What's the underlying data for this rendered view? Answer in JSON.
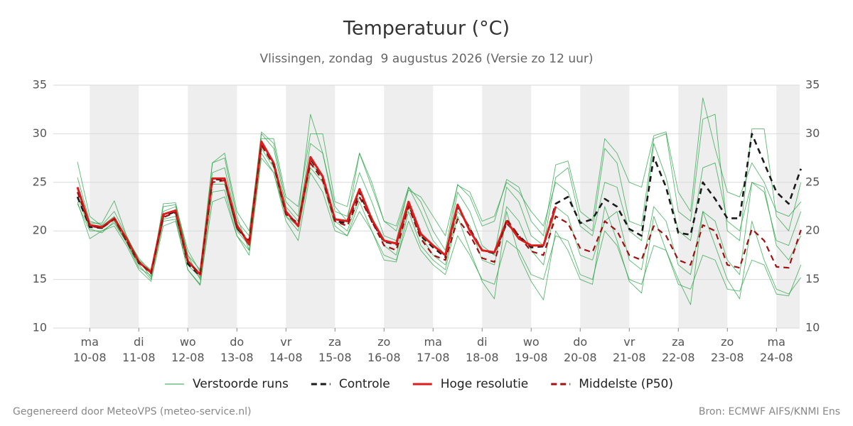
{
  "chart_data": {
    "type": "line",
    "title": "Temperatuur (°C)",
    "subtitle": "Vlissingen, zondag  9 augustus 2026 (Versie zo 12 uur)",
    "footer_left": "Gegenereerd door MeteoVPS (meteo-service.nl)",
    "footer_right": "Bron: ECMWF AIFS/KNMI Ens",
    "categories": [
      null,
      "ma 10-08",
      null,
      null,
      null,
      "di 11-08",
      null,
      null,
      null,
      "wo 12-08",
      null,
      null,
      null,
      "do 13-08",
      null,
      null,
      null,
      "vr 14-08",
      null,
      null,
      null,
      "za 15-08",
      null,
      null,
      null,
      "zo 16-08",
      null,
      null,
      null,
      "ma 17-08",
      null,
      null,
      null,
      "di 18-08",
      null,
      null,
      null,
      "wo 19-08",
      null,
      null,
      null,
      "do 20-08",
      null,
      null,
      null,
      "vr 21-08",
      null,
      null,
      null,
      "za 22-08",
      null,
      null,
      null,
      "zo 23-08",
      null,
      null,
      null,
      "ma 24-08",
      null,
      null
    ],
    "ylim": [
      10,
      35
    ],
    "yticks": [
      10,
      15,
      20,
      25,
      30,
      35
    ],
    "grid": true,
    "legend": "bottom",
    "series": [
      {
        "name": "Verstoorde runs",
        "color": "#23a040",
        "values": [
          25.5,
          21.0,
          20.6,
          22.0,
          19.5,
          17.0,
          15.2,
          22.8,
          22.9,
          17.5,
          15.0,
          27.0,
          27.5,
          21.5,
          18.0,
          30.0,
          28.5,
          22.5,
          21.0,
          29.0,
          28.0,
          22.0,
          21.5,
          26.0,
          23.0,
          19.5,
          19.0,
          24.5,
          22.0,
          19.0,
          17.5,
          24.0,
          22.0,
          18.5,
          17.5,
          24.5,
          23.0,
          19.5,
          18.5,
          25.5,
          26.5,
          21.0,
          20.0,
          28.5,
          27.0,
          21.0,
          20.5,
          29.5,
          30.0,
          22.0,
          21.0,
          31.5,
          32.0,
          20.0,
          19.0,
          30.5,
          30.5,
          21.5,
          20.0,
          25.0
        ]
      },
      {
        "name": "Verstoorde runs",
        "color": "#23a040",
        "values": [
          22.8,
          20.0,
          20.0,
          20.8,
          18.8,
          16.5,
          15.0,
          21.0,
          21.2,
          16.0,
          14.5,
          24.0,
          24.2,
          19.5,
          17.5,
          27.5,
          26.0,
          21.0,
          19.0,
          26.0,
          24.0,
          20.0,
          19.5,
          22.0,
          20.0,
          17.5,
          17.0,
          21.0,
          18.0,
          16.5,
          15.5,
          19.5,
          17.5,
          15.0,
          14.5,
          19.0,
          18.0,
          15.5,
          15.0,
          19.5,
          19.0,
          15.5,
          15.0,
          20.0,
          18.5,
          15.0,
          14.5,
          18.5,
          18.0,
          14.5,
          14.0,
          17.5,
          17.0,
          14.0,
          13.8,
          17.0,
          16.5,
          13.5,
          13.3,
          16.5
        ]
      },
      {
        "name": "Verstoorde runs",
        "color": "#23a040",
        "values": [
          27.1,
          21.5,
          20.5,
          21.5,
          19.3,
          17.2,
          15.8,
          22.5,
          22.7,
          18.0,
          15.8,
          26.0,
          26.5,
          21.0,
          19.5,
          30.2,
          29.0,
          23.0,
          21.5,
          32.0,
          28.0,
          22.5,
          21.0,
          28.0,
          25.0,
          21.0,
          20.5,
          24.5,
          23.0,
          20.0,
          18.0,
          24.8,
          23.5,
          20.5,
          21.0,
          25.3,
          24.5,
          21.0,
          19.5,
          26.8,
          27.2,
          22.0,
          21.0,
          29.5,
          28.0,
          25.0,
          24.5,
          29.8,
          30.2,
          24.0,
          22.0,
          33.7,
          28.5,
          24.0,
          23.5,
          27.0,
          25.0,
          22.0,
          21.5,
          23.0
        ]
      },
      {
        "name": "Verstoorde runs",
        "color": "#23a040",
        "values": [
          23.0,
          19.2,
          20.0,
          20.5,
          18.5,
          16.0,
          14.8,
          20.5,
          21.0,
          16.0,
          14.4,
          23.0,
          23.5,
          19.5,
          18.0,
          28.0,
          26.0,
          21.5,
          20.0,
          26.5,
          25.0,
          20.5,
          19.5,
          23.0,
          20.0,
          17.0,
          16.8,
          22.0,
          18.5,
          17.0,
          16.0,
          21.5,
          18.0,
          14.8,
          13.0,
          22.0,
          17.5,
          14.8,
          12.9,
          20.0,
          18.0,
          15.0,
          14.5,
          22.5,
          19.0,
          14.8,
          13.6,
          21.5,
          18.0,
          15.0,
          12.4,
          22.0,
          18.5,
          15.0,
          13.0,
          21.0,
          17.0,
          14.0,
          13.5,
          15.2
        ]
      },
      {
        "name": "Verstoorde runs",
        "color": "#23a040",
        "values": [
          24.0,
          20.8,
          20.8,
          23.1,
          19.5,
          17.0,
          16.0,
          22.0,
          22.5,
          17.5,
          16.0,
          27.0,
          28.0,
          22.0,
          20.0,
          29.5,
          29.5,
          23.5,
          22.5,
          30.0,
          30.0,
          23.0,
          22.5,
          28.0,
          24.5,
          21.0,
          20.0,
          24.2,
          23.5,
          21.5,
          19.5,
          24.7,
          24.0,
          21.0,
          21.5,
          25.0,
          24.0,
          22.0,
          20.5,
          25.0,
          24.0,
          20.5,
          19.5,
          25.0,
          24.5,
          20.0,
          19.0,
          29.0,
          25.5,
          20.0,
          19.0,
          26.5,
          27.0,
          21.0,
          20.0,
          25.0,
          24.0,
          19.0,
          18.5,
          22.0
        ]
      },
      {
        "name": "Verstoorde runs",
        "color": "#23a040",
        "values": [
          23.5,
          20.2,
          19.8,
          21.0,
          18.8,
          16.2,
          15.4,
          21.2,
          21.5,
          16.5,
          15.2,
          24.8,
          24.8,
          20.0,
          18.5,
          28.5,
          26.5,
          21.5,
          20.5,
          27.0,
          25.5,
          21.0,
          20.0,
          23.5,
          21.5,
          18.5,
          17.5,
          22.5,
          19.5,
          17.5,
          16.5,
          22.0,
          20.5,
          17.0,
          16.5,
          22.5,
          21.0,
          18.0,
          16.5,
          22.5,
          21.5,
          17.5,
          17.0,
          21.0,
          22.0,
          17.0,
          16.0,
          22.5,
          21.0,
          16.5,
          15.5,
          22.0,
          21.0,
          17.0,
          15.5,
          25.0,
          24.5,
          18.5,
          17.0,
          19.5
        ]
      },
      {
        "name": "Controle",
        "color": "#1a1a1a",
        "dash": true,
        "values": [
          23.5,
          20.4,
          20.3,
          21.3,
          19.0,
          16.7,
          15.8,
          21.5,
          22.0,
          16.6,
          15.4,
          25.3,
          25.3,
          20.3,
          18.8,
          29.0,
          26.8,
          21.8,
          20.6,
          27.4,
          25.5,
          21.0,
          20.8,
          24.0,
          21.0,
          18.9,
          18.6,
          22.8,
          19.5,
          18.3,
          17.3,
          22.5,
          20.2,
          18.0,
          17.7,
          20.8,
          19.5,
          18.3,
          18.4,
          22.8,
          23.5,
          20.8,
          21.2,
          23.3,
          22.5,
          20.2,
          19.5,
          27.6,
          24.5,
          19.8,
          19.6,
          25.0,
          23.3,
          21.3,
          21.3,
          30.0,
          27.0,
          24.0,
          22.8,
          26.4
        ]
      },
      {
        "name": "Hoge resolutie",
        "color": "#dd1c1c",
        "values": [
          24.5,
          20.6,
          20.4,
          21.3,
          19.2,
          16.8,
          15.7,
          21.7,
          22.1,
          16.9,
          15.5,
          25.4,
          25.4,
          20.6,
          18.6,
          29.2,
          27.0,
          22.0,
          20.5,
          27.6,
          25.6,
          21.2,
          21.0,
          24.3,
          21.2,
          19.0,
          18.7,
          23.0,
          19.7,
          18.5,
          17.5,
          22.7,
          20.0,
          18.0,
          17.8,
          21.0,
          19.2,
          18.5,
          18.5,
          22.5,
          null,
          null,
          null,
          null,
          null,
          null,
          null,
          null,
          null,
          null,
          null,
          null,
          null,
          null,
          null,
          null,
          null,
          null,
          null,
          null
        ]
      },
      {
        "name": "Middelste (P50)",
        "color": "#a01010",
        "dash": true,
        "values": [
          24.0,
          20.5,
          20.3,
          21.2,
          19.0,
          16.8,
          15.6,
          21.4,
          21.9,
          16.8,
          15.6,
          25.0,
          25.2,
          20.3,
          19.0,
          28.8,
          26.8,
          21.7,
          20.8,
          27.0,
          25.2,
          21.0,
          20.5,
          23.5,
          21.0,
          18.5,
          18.0,
          22.5,
          19.2,
          17.5,
          17.0,
          21.2,
          19.6,
          17.2,
          16.8,
          21.2,
          19.5,
          17.9,
          17.5,
          21.5,
          20.8,
          18.2,
          17.8,
          21.0,
          20.0,
          17.5,
          17.0,
          20.5,
          19.5,
          17.0,
          16.5,
          20.6,
          20.0,
          16.5,
          16.2,
          20.2,
          19.0,
          16.3,
          16.2,
          20.1
        ]
      }
    ]
  }
}
